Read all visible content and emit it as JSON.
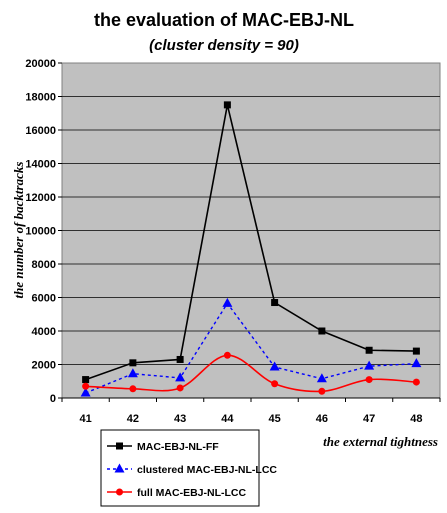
{
  "chart_data": {
    "type": "line",
    "title": "the evaluation of MAC-EBJ-NL",
    "subtitle": "(cluster density = 90)",
    "xlabel": "the external tightness",
    "ylabel": "the number of backtracks",
    "categories": [
      "41",
      "42",
      "43",
      "44",
      "45",
      "46",
      "47",
      "48"
    ],
    "ylim": [
      0,
      20000
    ],
    "yticks": [
      0,
      2000,
      4000,
      6000,
      8000,
      10000,
      12000,
      14000,
      16000,
      18000,
      20000
    ],
    "grid": true,
    "plot_background": "#c0c0c0",
    "legend_position": "bottom-left",
    "series": [
      {
        "name": "MAC-EBJ-NL-FF",
        "values": [
          1100,
          2100,
          2300,
          17500,
          5700,
          4000,
          2850,
          2800
        ],
        "color": "#000000",
        "marker": "square",
        "line": "solid",
        "smooth": false
      },
      {
        "name": "clustered MAC-EBJ-NL-LCC",
        "values": [
          300,
          1450,
          1200,
          5650,
          1850,
          1150,
          1900,
          2050
        ],
        "color": "#0000ff",
        "marker": "triangle",
        "line": "dotted",
        "smooth": false
      },
      {
        "name": "full  MAC-EBJ-NL-LCC",
        "values": [
          700,
          550,
          600,
          2550,
          850,
          400,
          1100,
          950
        ],
        "color": "#ff0000",
        "marker": "circle",
        "line": "solid",
        "smooth": true
      }
    ]
  }
}
